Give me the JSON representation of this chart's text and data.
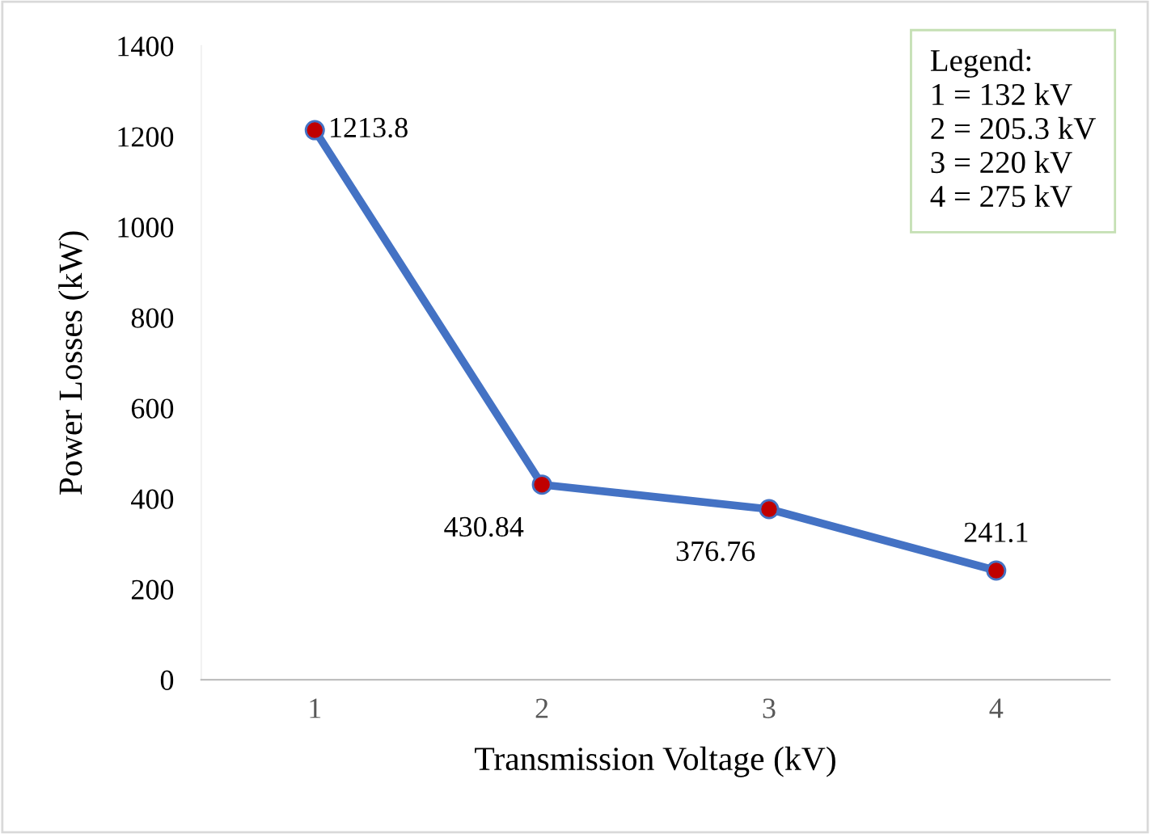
{
  "chart_data": {
    "type": "line",
    "xlabel": "Transmission Voltage (kV)",
    "ylabel": "Power Losses (kW)",
    "categories": [
      "1",
      "2",
      "3",
      "4"
    ],
    "series": [
      {
        "color": "#4472c4",
        "values": [
          1213.8,
          430.84,
          376.76,
          241.1
        ]
      }
    ],
    "ylim": [
      0,
      1400
    ],
    "yticks": [
      0,
      200,
      400,
      600,
      800,
      1000,
      1200,
      1400
    ],
    "grid": false,
    "marker": "circle",
    "line_style": "solid",
    "data_labels": true,
    "annotations": [
      "Legend:\n1 = 132 kV\n2 = 205.3 kV\n3 = 220 kV\n4 = 275 kV"
    ]
  }
}
